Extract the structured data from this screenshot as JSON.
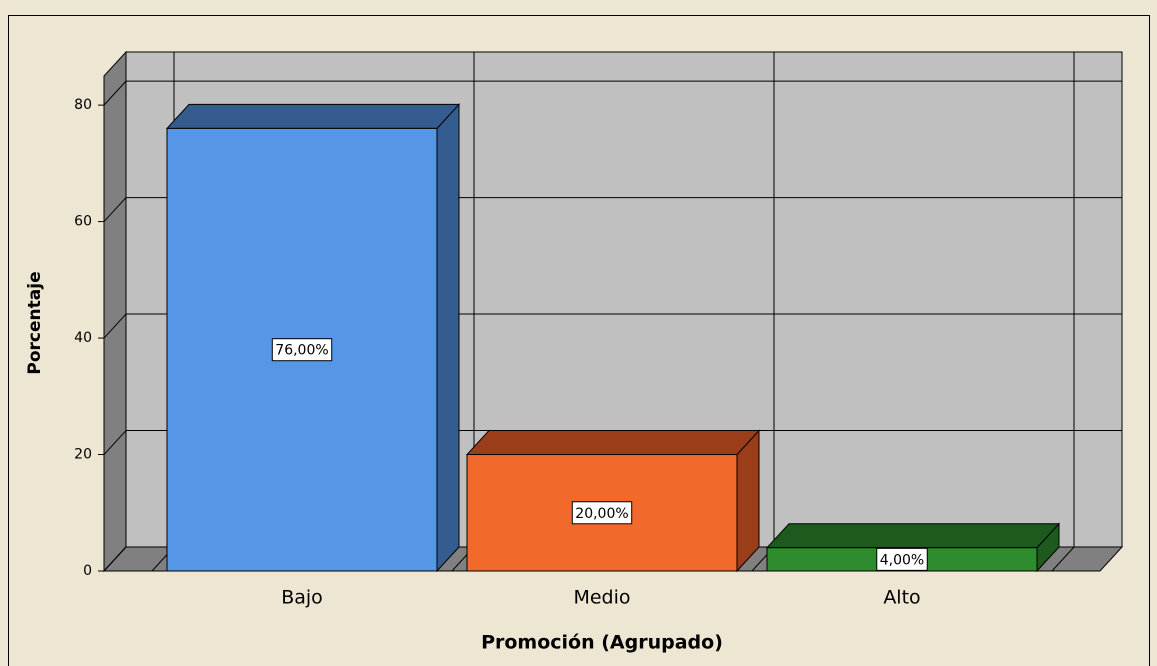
{
  "chart_data": {
    "type": "bar3d",
    "x_label": "Promoción (Agrupado)",
    "y_label": "Porcentaje",
    "categories": [
      "Bajo",
      "Medio",
      "Alto"
    ],
    "values": [
      76,
      20,
      4
    ],
    "value_labels": [
      "76,00%",
      "20,00%",
      "4,00%"
    ],
    "colors": [
      "#5596e6",
      "#f26a2b",
      "#2e8b2e"
    ],
    "side_colors": [
      "#345c8e",
      "#9a3d19",
      "#1e5a1e"
    ],
    "ylim": [
      0,
      85
    ],
    "yticks": [
      0,
      20,
      40,
      60,
      80
    ],
    "grid": true
  }
}
